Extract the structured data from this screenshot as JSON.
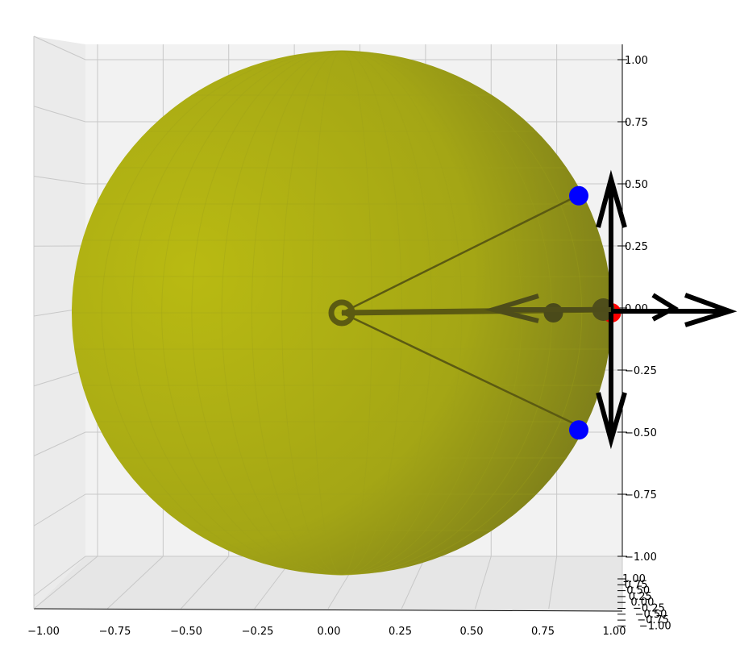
{
  "chart_data": {
    "type": "scatter",
    "projection": "3d",
    "title": "",
    "grid": true,
    "axes": {
      "x": {
        "ticks": [
          "−1.00",
          "−0.75",
          "−0.50",
          "−0.25",
          "0.00",
          "0.25",
          "0.50",
          "0.75",
          "1.00"
        ],
        "range": [
          -1,
          1
        ]
      },
      "z": {
        "ticks": [
          "1.00",
          "0.75",
          "0.50",
          "0.25",
          "0.00",
          "−0.25",
          "−0.50",
          "−0.75",
          "−1.00"
        ],
        "range": [
          -1,
          1
        ]
      },
      "y": {
        "ticks": [
          "1.00",
          "0.75",
          "0.50",
          "0.25",
          "0.00",
          "−0.25",
          "−0.50",
          "−0.75",
          "−1.00"
        ],
        "range": [
          -1,
          1
        ]
      }
    },
    "sphere": {
      "center": [
        0,
        0,
        0
      ],
      "radius": 0.95,
      "color": "#b5b713"
    },
    "points": [
      {
        "x": 0.0,
        "y": 0.0,
        "z": 0.0,
        "color": "#5b5a12",
        "label": "origin"
      },
      {
        "x": 0.84,
        "y": 0.0,
        "z": 0.47,
        "color": "#0000ff"
      },
      {
        "x": 0.84,
        "y": 0.0,
        "z": -0.47,
        "color": "#0000ff"
      },
      {
        "x": 0.95,
        "y": 0.0,
        "z": 0.0,
        "color": "#ff0000"
      },
      {
        "x": 0.75,
        "y": 0.0,
        "z": 0.0,
        "color": "#4a4a1a"
      }
    ],
    "vectors": [
      {
        "from": [
          0.95,
          0,
          0
        ],
        "to": [
          0.95,
          0,
          0.52
        ],
        "color": "#000000"
      },
      {
        "from": [
          0.95,
          0,
          0
        ],
        "to": [
          0.95,
          0,
          -0.52
        ],
        "color": "#000000"
      },
      {
        "from": [
          0.95,
          0,
          0
        ],
        "to": [
          1.4,
          0,
          0
        ],
        "color": "#000000"
      },
      {
        "from": [
          0.95,
          0,
          0
        ],
        "to": [
          1.2,
          0,
          0
        ],
        "color": "#000000"
      },
      {
        "from": [
          0.95,
          0,
          0
        ],
        "to": [
          0.55,
          0,
          0
        ],
        "color": "#4a4a1a"
      }
    ]
  }
}
